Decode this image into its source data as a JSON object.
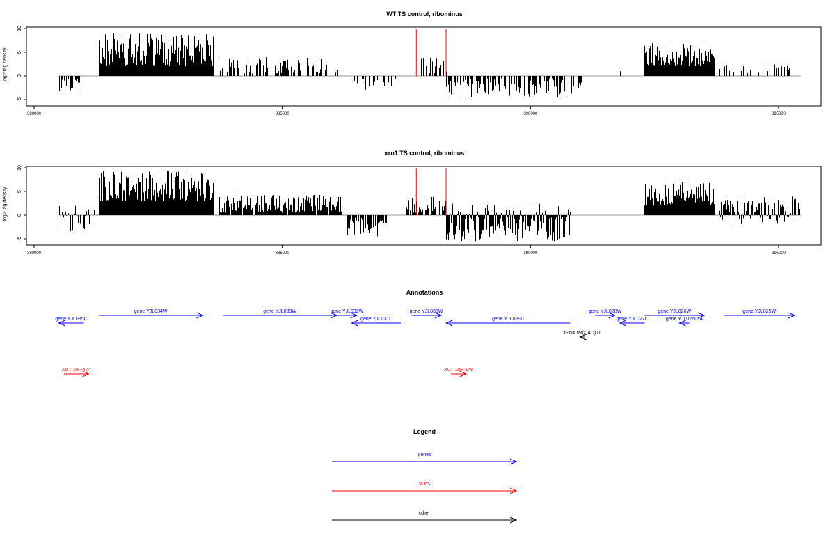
{
  "chart_data": [
    {
      "type": "bar",
      "title": "WT TS control, ribominus",
      "ylabel": "log2 tag density",
      "xlim": [
        380000,
        395500
      ],
      "ylim": [
        -6,
        10
      ],
      "x_ticks": [
        380000,
        385000,
        390000,
        395000
      ],
      "x_tick_labels": [
        "380000",
        "385000",
        "390000",
        "395000"
      ],
      "y_ticks": [
        -5,
        0,
        5,
        10
      ],
      "y_tick_labels": [
        "-5",
        "0",
        "5",
        "10"
      ],
      "marker_lines": [
        {
          "x": 387700,
          "color": "#ff0000"
        },
        {
          "x": 388300,
          "color": "#ff0000"
        }
      ],
      "segments": [
        {
          "x_start": 380500,
          "x_end": 381000,
          "min": -4,
          "max": -0.5,
          "density": 0.4
        },
        {
          "x_start": 381300,
          "x_end": 383600,
          "min": 2,
          "max": 9,
          "density": 1.0
        },
        {
          "x_start": 383700,
          "x_end": 386200,
          "min": 0.5,
          "max": 4,
          "density": 0.5
        },
        {
          "x_start": 386400,
          "x_end": 387300,
          "min": -3,
          "max": -0.5,
          "density": 0.3
        },
        {
          "x_start": 387800,
          "x_end": 388300,
          "min": 0.5,
          "max": 4,
          "density": 0.4
        },
        {
          "x_start": 388300,
          "x_end": 391100,
          "min": -4.5,
          "max": -0.5,
          "density": 0.55
        },
        {
          "x_start": 391800,
          "x_end": 391820,
          "min": 1,
          "max": 1,
          "density": 1
        },
        {
          "x_start": 392300,
          "x_end": 393700,
          "min": 2,
          "max": 7,
          "density": 1.0
        },
        {
          "x_start": 393800,
          "x_end": 395400,
          "min": 0.5,
          "max": 2.5,
          "density": 0.25
        }
      ]
    },
    {
      "type": "bar",
      "title": "xrn1 TS control, ribominus",
      "ylabel": "log2 tag density",
      "xlim": [
        380000,
        395500
      ],
      "ylim": [
        -6,
        10
      ],
      "x_ticks": [
        380000,
        385000,
        390000,
        395000
      ],
      "x_tick_labels": [
        "380000",
        "385000",
        "390000",
        "395000"
      ],
      "y_ticks": [
        -5,
        0,
        5,
        10
      ],
      "y_tick_labels": [
        "-5",
        "0",
        "5",
        "10"
      ],
      "marker_lines": [
        {
          "x": 387700,
          "color": "#ff0000"
        },
        {
          "x": 388300,
          "color": "#ff0000"
        }
      ],
      "segments": [
        {
          "x_start": 380500,
          "x_end": 381200,
          "min": -3.5,
          "max": 2,
          "density": 0.6
        },
        {
          "x_start": 381300,
          "x_end": 383600,
          "min": 3,
          "max": 9.5,
          "density": 1.0
        },
        {
          "x_start": 383700,
          "x_end": 386200,
          "min": 0.5,
          "max": 4.5,
          "density": 0.9
        },
        {
          "x_start": 386300,
          "x_end": 387100,
          "min": -4.5,
          "max": -0.5,
          "density": 0.7
        },
        {
          "x_start": 387500,
          "x_end": 388300,
          "min": 0.5,
          "max": 4,
          "density": 0.7
        },
        {
          "x_start": 388300,
          "x_end": 390800,
          "min": -5.5,
          "max": 2.5,
          "density": 0.95
        },
        {
          "x_start": 392300,
          "x_end": 393700,
          "min": 2,
          "max": 7,
          "density": 1.0
        },
        {
          "x_start": 393800,
          "x_end": 395400,
          "min": -2,
          "max": 4,
          "density": 0.85
        }
      ]
    }
  ],
  "annotations": {
    "title": "Annotations",
    "features": [
      {
        "label": "gene YJL035C",
        "kind": "gene",
        "start": 380500,
        "end": 381000,
        "strand": "-",
        "row": 1
      },
      {
        "label": "gene YJL034W",
        "kind": "gene",
        "start": 381300,
        "end": 383400,
        "strand": "+",
        "row": 0
      },
      {
        "label": "gene YJL033W",
        "kind": "gene",
        "start": 383800,
        "end": 386100,
        "strand": "+",
        "row": 0
      },
      {
        "label": "gene YJL032W",
        "kind": "gene",
        "start": 386100,
        "end": 386500,
        "strand": "+",
        "row": 0
      },
      {
        "label": "gene YJL031C",
        "kind": "gene",
        "start": 386400,
        "end": 387400,
        "strand": "-",
        "row": 1
      },
      {
        "label": "gene YJL030W",
        "kind": "gene",
        "start": 387600,
        "end": 388200,
        "strand": "+",
        "row": 0
      },
      {
        "label": "gene YJL029C",
        "kind": "gene",
        "start": 388300,
        "end": 390800,
        "strand": "-",
        "row": 1
      },
      {
        "label": "gene YJL028W",
        "kind": "gene",
        "start": 391300,
        "end": 391700,
        "strand": "+",
        "row": 0
      },
      {
        "label": "gene YJL027C",
        "kind": "gene",
        "start": 391800,
        "end": 392300,
        "strand": "-",
        "row": 1
      },
      {
        "label": "gene YJL026W",
        "kind": "gene",
        "start": 392300,
        "end": 393500,
        "strand": "+",
        "row": 0
      },
      {
        "label": "gene YJL026C-A",
        "kind": "gene",
        "start": 393000,
        "end": 393200,
        "strand": "-",
        "row": 1
      },
      {
        "label": "gene YJL025W",
        "kind": "gene",
        "start": 393900,
        "end": 395500,
        "strand": "+",
        "row": 0
      },
      {
        "label": "tRNA tM(CAU)J1",
        "kind": "other",
        "start": 391000,
        "end": 391100,
        "strand": "-",
        "row": 2
      },
      {
        "label": "XUT 10F-474",
        "kind": "xut",
        "start": 380600,
        "end": 381100,
        "strand": "+",
        "row": 3
      },
      {
        "label": "XUT 10F-179",
        "kind": "xut",
        "start": 388400,
        "end": 388700,
        "strand": "+",
        "row": 3
      }
    ]
  },
  "legend": {
    "title": "Legend",
    "items": [
      {
        "label": "genes",
        "color": "#0000ff"
      },
      {
        "label": "XUTs",
        "color": "#ff0000"
      },
      {
        "label": "other",
        "color": "#000000"
      }
    ]
  },
  "colors": {
    "gene": "#0000ff",
    "xut": "#ff0000",
    "other": "#000000",
    "bars": "#000000",
    "axis": "#000000",
    "baseline": "#999999"
  }
}
